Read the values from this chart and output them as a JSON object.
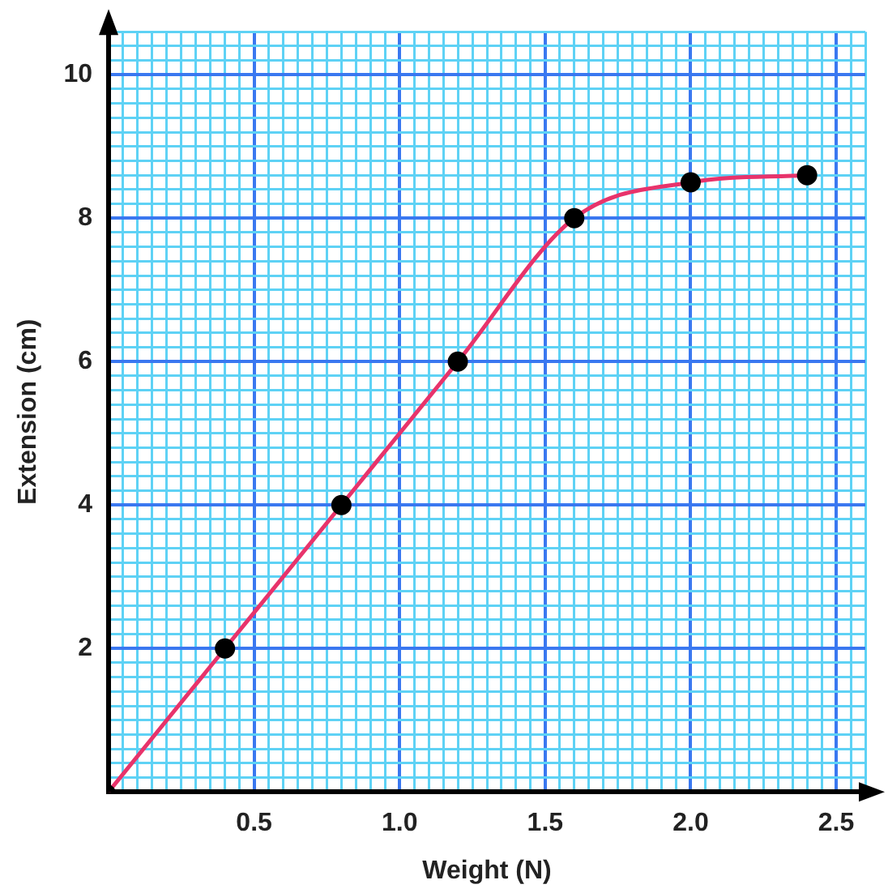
{
  "chart_data": {
    "type": "line",
    "xlabel": "Weight (N)",
    "ylabel": "Extension (cm)",
    "x": [
      0,
      0.4,
      0.8,
      1.2,
      1.6,
      2.0,
      2.4
    ],
    "series": [
      {
        "color": "#e8336b",
        "values": [
          0,
          2,
          4,
          6,
          8,
          8.5,
          8.6
        ]
      }
    ],
    "xlim": [
      0,
      2.6
    ],
    "xticks": [
      {
        "value": 0,
        "label": null
      },
      {
        "value": 0.05,
        "label": null
      },
      {
        "value": 0.1,
        "label": null
      },
      {
        "value": 0.15,
        "label": null
      },
      {
        "value": 0.2,
        "label": null
      },
      {
        "value": 0.25,
        "label": null
      },
      {
        "value": 0.3,
        "label": null
      },
      {
        "value": 0.35,
        "label": null
      },
      {
        "value": 0.4,
        "label": null
      },
      {
        "value": 0.45,
        "label": null
      },
      {
        "value": 0.5,
        "label": "0.5"
      },
      {
        "value": 0.55,
        "label": null
      },
      {
        "value": 0.6,
        "label": null
      },
      {
        "value": 0.65,
        "label": null
      },
      {
        "value": 0.7,
        "label": null
      },
      {
        "value": 0.75,
        "label": null
      },
      {
        "value": 0.8,
        "label": null
      },
      {
        "value": 0.85,
        "label": null
      },
      {
        "value": 0.9,
        "label": null
      },
      {
        "value": 0.95,
        "label": null
      },
      {
        "value": 1.0,
        "label": "1.0"
      },
      {
        "value": 1.05,
        "label": null
      },
      {
        "value": 1.1,
        "label": null
      },
      {
        "value": 1.15,
        "label": null
      },
      {
        "value": 1.2,
        "label": null
      },
      {
        "value": 1.25,
        "label": null
      },
      {
        "value": 1.3,
        "label": null
      },
      {
        "value": 1.35,
        "label": null
      },
      {
        "value": 1.4,
        "label": null
      },
      {
        "value": 1.45,
        "label": null
      },
      {
        "value": 1.5,
        "label": "1.5"
      },
      {
        "value": 1.55,
        "label": null
      },
      {
        "value": 1.6,
        "label": null
      },
      {
        "value": 1.65,
        "label": null
      },
      {
        "value": 1.7,
        "label": null
      },
      {
        "value": 1.75,
        "label": null
      },
      {
        "value": 1.8,
        "label": null
      },
      {
        "value": 1.85,
        "label": null
      },
      {
        "value": 1.9,
        "label": null
      },
      {
        "value": 1.95,
        "label": null
      },
      {
        "value": 2.0,
        "label": "2.0"
      },
      {
        "value": 2.05,
        "label": null
      },
      {
        "value": 2.1,
        "label": null
      },
      {
        "value": 2.15,
        "label": null
      },
      {
        "value": 2.2,
        "label": null
      },
      {
        "value": 2.25,
        "label": null
      },
      {
        "value": 2.3,
        "label": null
      },
      {
        "value": 2.35,
        "label": null
      },
      {
        "value": 2.4,
        "label": null
      },
      {
        "value": 2.45,
        "label": null
      },
      {
        "value": 2.5,
        "label": "2.5"
      },
      {
        "value": 2.55,
        "label": null
      },
      {
        "value": 2.6,
        "label": null
      }
    ],
    "ylim": [
      0,
      10.6
    ],
    "yticks": [
      {
        "value": 0,
        "label": null
      },
      {
        "value": 0.2,
        "label": null
      },
      {
        "value": 0.4,
        "label": null
      },
      {
        "value": 0.6,
        "label": null
      },
      {
        "value": 0.8,
        "label": null
      },
      {
        "value": 1,
        "label": null
      },
      {
        "value": 1.2,
        "label": null
      },
      {
        "value": 1.4,
        "label": null
      },
      {
        "value": 1.6,
        "label": null
      },
      {
        "value": 1.8,
        "label": null
      },
      2,
      {
        "value": 2.2,
        "label": null
      },
      {
        "value": 2.4,
        "label": null
      },
      {
        "value": 2.6,
        "label": null
      },
      {
        "value": 2.8,
        "label": null
      },
      {
        "value": 3,
        "label": null
      },
      {
        "value": 3.2,
        "label": null
      },
      {
        "value": 3.4,
        "label": null
      },
      {
        "value": 3.6,
        "label": null
      },
      {
        "value": 3.8,
        "label": null
      },
      4,
      {
        "value": 4.2,
        "label": null
      },
      {
        "value": 4.4,
        "label": null
      },
      {
        "value": 4.6,
        "label": null
      },
      {
        "value": 4.8,
        "label": null
      },
      {
        "value": 5,
        "label": null
      },
      {
        "value": 5.2,
        "label": null
      },
      {
        "value": 5.4,
        "label": null
      },
      {
        "value": 5.6,
        "label": null
      },
      {
        "value": 5.8,
        "label": null
      },
      6,
      {
        "value": 6.2,
        "label": null
      },
      {
        "value": 6.4,
        "label": null
      },
      {
        "value": 6.6,
        "label": null
      },
      {
        "value": 6.8,
        "label": null
      },
      {
        "value": 7,
        "label": null
      },
      {
        "value": 7.2,
        "label": null
      },
      {
        "value": 7.4,
        "label": null
      },
      {
        "value": 7.6,
        "label": null
      },
      {
        "value": 7.8,
        "label": null
      },
      8,
      {
        "value": 8.2,
        "label": null
      },
      {
        "value": 8.4,
        "label": null
      },
      {
        "value": 8.6,
        "label": null
      },
      {
        "value": 8.8,
        "label": null
      },
      {
        "value": 9,
        "label": null
      },
      {
        "value": 9.2,
        "label": null
      },
      {
        "value": 9.4,
        "label": null
      },
      {
        "value": 9.6,
        "label": null
      },
      {
        "value": 9.8,
        "label": null
      },
      10,
      {
        "value": 10.2,
        "label": null
      },
      {
        "value": 10.4,
        "label": null
      },
      {
        "value": 10.6,
        "label": null
      }
    ],
    "grid": true,
    "legend": false,
    "marker": "circle",
    "line_style": "solid"
  }
}
